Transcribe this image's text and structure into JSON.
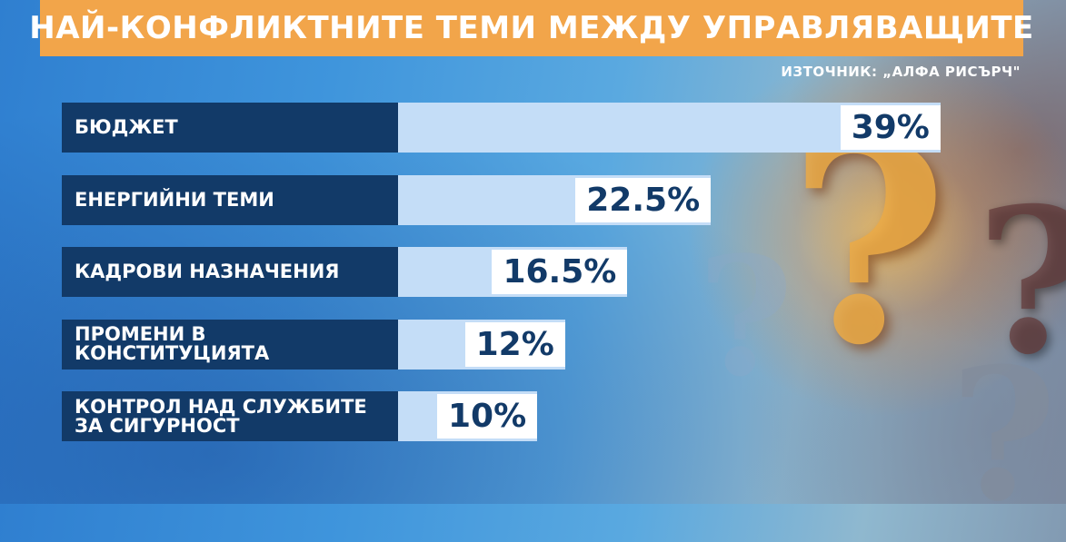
{
  "header": {
    "title": "НАЙ-КОНФЛИКТНИТЕ ТЕМИ МЕЖДУ УПРАВЛЯВАЩИТЕ",
    "source": "ИЗТОЧНИК: „АЛФА РИСЪРЧ\""
  },
  "colors": {
    "title_bg": "#f2a54a",
    "label_bg": "#123a68",
    "bar_fill": "#c4ddf7",
    "value_bg": "#ffffff",
    "value_text": "#123a68"
  },
  "chart_data": {
    "type": "bar",
    "orientation": "horizontal",
    "title": "НАЙ-КОНФЛИКТНИТЕ ТЕМИ МЕЖДУ УПРАВЛЯВАЩИТЕ",
    "categories": [
      "БЮДЖЕТ",
      "ЕНЕРГИЙНИ ТЕМИ",
      "КАДРОВИ НАЗНАЧЕНИЯ",
      "ПРОМЕНИ В КОНСТИТУЦИЯТА",
      "КОНТРОЛ НАД СЛУЖБИТЕ ЗА СИГУРНОСТ"
    ],
    "values": [
      39,
      22.5,
      16.5,
      12,
      10
    ],
    "value_labels": [
      "39%",
      "22.5%",
      "16.5%",
      "12%",
      "10%"
    ],
    "xlim": [
      0,
      40
    ],
    "grid": false,
    "legend": "none"
  }
}
